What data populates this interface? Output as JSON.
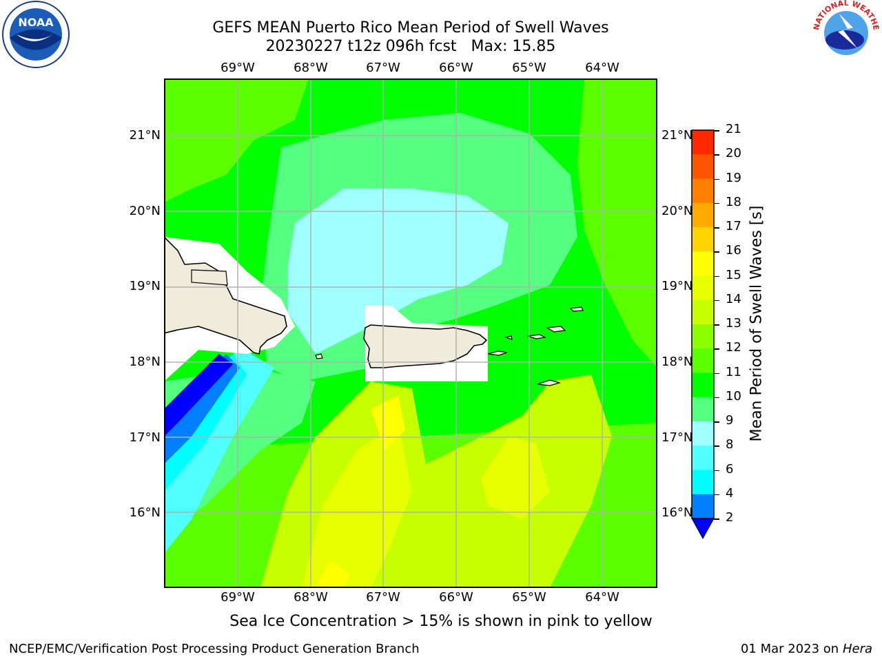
{
  "title": {
    "line1": "GEFS MEAN Puerto Rico Mean Period of Swell Waves",
    "line2_run": "20230227 t12z 096h fcst",
    "line2_max": "Max: 15.85"
  },
  "map": {
    "lon_labels": [
      "69°W",
      "68°W",
      "67°W",
      "66°W",
      "65°W",
      "64°W"
    ],
    "lat_labels": [
      "21°N",
      "20°N",
      "19°N",
      "18°N",
      "17°N",
      "16°N"
    ],
    "colors": {
      "land": "#efecdc",
      "coast": "#000000",
      "grid": "#b0b0b0",
      "masked": "#ffffff"
    }
  },
  "colorbar": {
    "label": "Mean Period of Swell Waves [s]",
    "ticks": [
      "21",
      "20",
      "19",
      "18",
      "17",
      "16",
      "15",
      "14",
      "13",
      "12",
      "11",
      "10",
      "9",
      "8",
      "6",
      "4",
      "2"
    ],
    "colors": [
      "#ff0000",
      "#ff2a00",
      "#ff5500",
      "#ff8000",
      "#ffaa00",
      "#ffd400",
      "#ffff00",
      "#e8ff00",
      "#c8ff00",
      "#8cff00",
      "#5aff00",
      "#00ff00",
      "#55ff80",
      "#a0ffff",
      "#50ffff",
      "#00ffff",
      "#0080ff",
      "#0000ff"
    ]
  },
  "footer": {
    "sea_ice_note": "Sea Ice Concentration > 15% is shown in pink to yellow",
    "branch": "NCEP/EMC/Verification Post Processing Product Generation Branch",
    "date": "01 Mar 2023 on",
    "machine": "Hera"
  },
  "logos": {
    "left": "noaa-logo",
    "right": "nws-logo",
    "left_text": "NOAA",
    "right_text": "NATIONAL WEATHER SERVICE"
  }
}
